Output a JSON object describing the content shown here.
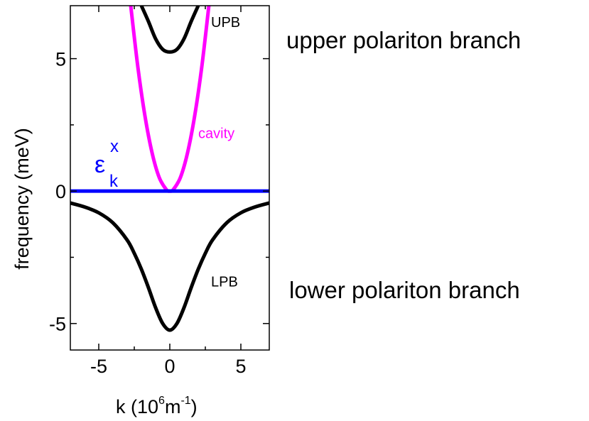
{
  "chart_data": {
    "type": "line",
    "xlabel": "k  (10",
    "xlabel_sup": "6",
    "xlabel_unit": "m",
    "xlabel_unit_sup": "-1",
    "xlabel_close": ")",
    "ylabel": "frequency (meV)",
    "xlim": [
      -7,
      7
    ],
    "ylim": [
      -6,
      7
    ],
    "x_ticks": [
      -5,
      0,
      5
    ],
    "x_tick_labels": [
      "-5",
      "0",
      "5"
    ],
    "y_ticks": [
      -5,
      0,
      5
    ],
    "y_tick_labels": [
      "-5",
      "0",
      "5"
    ],
    "grid": false,
    "series": [
      {
        "name": "UPB",
        "color": "#000000",
        "x": [
          -2.0,
          -1.5,
          -1.0,
          -0.5,
          0,
          0.5,
          1.0,
          1.5,
          2.0
        ],
        "y": [
          7.0,
          6.4,
          5.75,
          5.35,
          5.25,
          5.35,
          5.75,
          6.4,
          7.0
        ]
      },
      {
        "name": "cavity",
        "color": "#ff00ff",
        "x": [
          -2.75,
          -2.25,
          -1.75,
          -1.25,
          -0.75,
          -0.25,
          0,
          0.25,
          0.75,
          1.25,
          1.75,
          2.25,
          2.75
        ],
        "y": [
          7.0,
          4.69,
          2.84,
          1.45,
          0.52,
          0.06,
          0,
          0.06,
          0.52,
          1.45,
          2.84,
          4.69,
          7.0
        ]
      },
      {
        "name": "exciton",
        "color": "#0000ff",
        "x": [
          -7,
          7
        ],
        "y": [
          0,
          0
        ]
      },
      {
        "name": "LPB",
        "color": "#000000",
        "x": [
          -7,
          -6,
          -5,
          -4,
          -3,
          -2.5,
          -2,
          -1.5,
          -1,
          -0.5,
          0,
          0.5,
          1,
          1.5,
          2,
          2.5,
          3,
          4,
          5,
          6,
          7
        ],
        "y": [
          -0.45,
          -0.6,
          -0.82,
          -1.2,
          -1.85,
          -2.35,
          -2.95,
          -3.65,
          -4.4,
          -5.0,
          -5.25,
          -5.0,
          -4.4,
          -3.65,
          -2.95,
          -2.35,
          -1.85,
          -1.2,
          -0.82,
          -0.6,
          -0.45
        ]
      }
    ],
    "annotations": [
      {
        "text": "UPB",
        "x": 2.9,
        "y": 6.2,
        "color": "#000000"
      },
      {
        "text": "cavity",
        "x": 2.0,
        "y": 2.0,
        "color": "#ff00ff"
      },
      {
        "text": "LPB",
        "x": 2.9,
        "y": -3.6,
        "color": "#000000"
      }
    ],
    "exciton_label": {
      "base": "ε",
      "superscript": "x",
      "subscript": "k",
      "color": "#0000ff"
    }
  },
  "side_labels": {
    "upper": "upper polariton branch",
    "lower": "lower polariton branch"
  }
}
